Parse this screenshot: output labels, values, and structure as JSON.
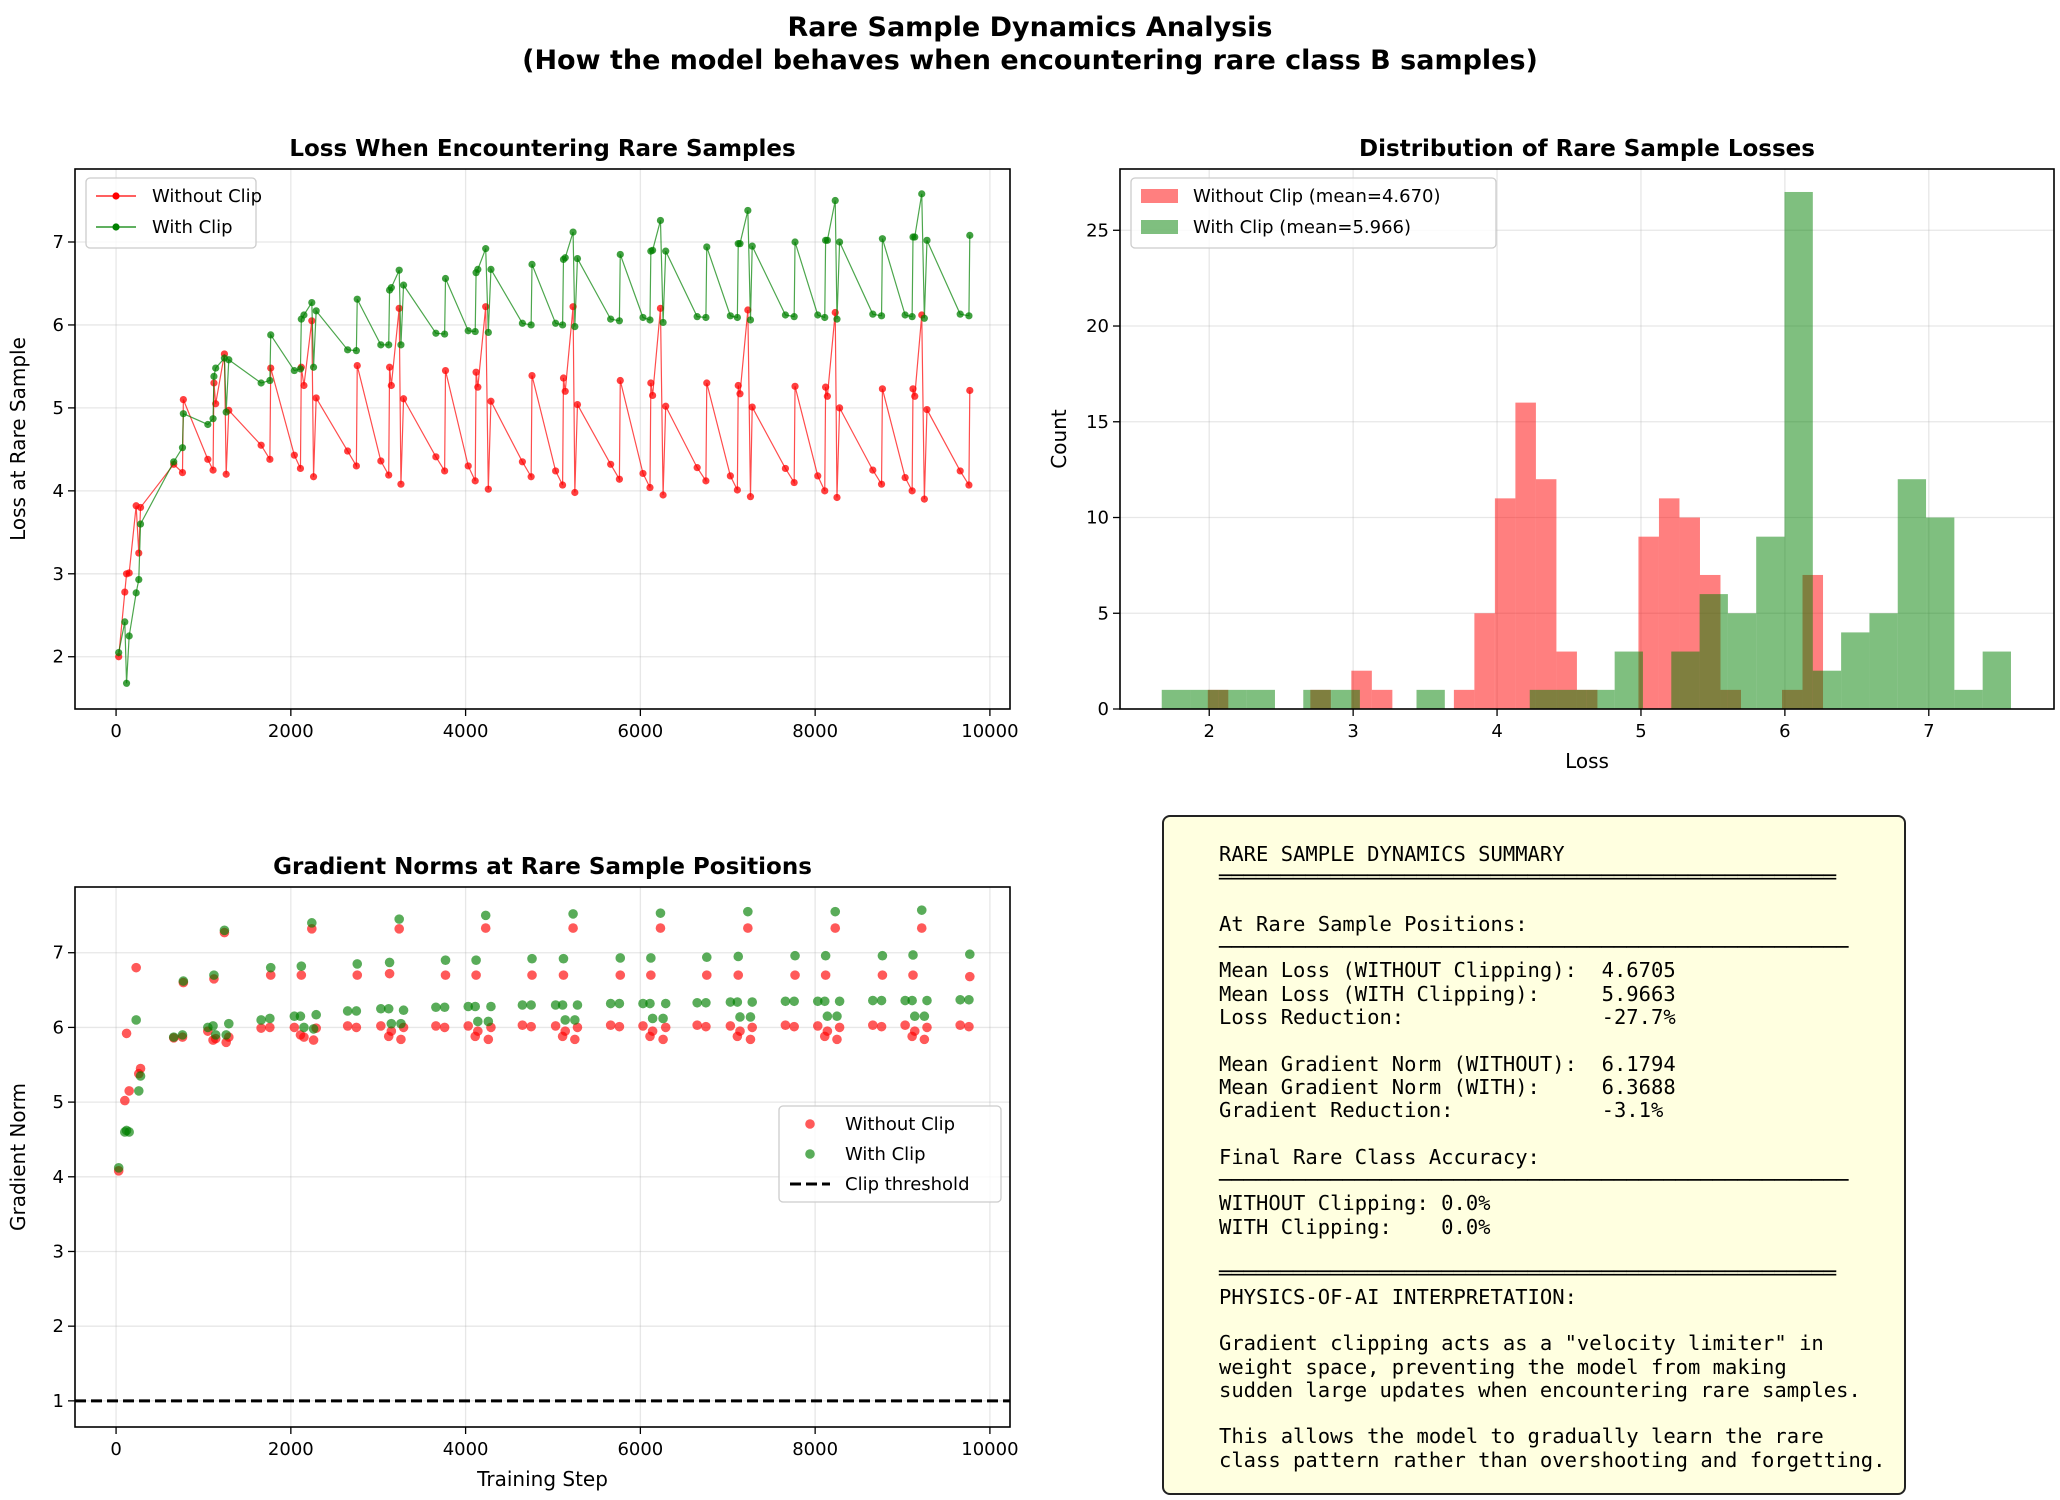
{
  "figure": {
    "title_line1": "Rare Sample Dynamics Analysis",
    "title_line2": "(How the model behaves when encountering rare class B samples)"
  },
  "colors": {
    "without_clip": "#ff0000",
    "with_clip": "#008000",
    "threshold": "#000000",
    "summary_bg": "#ffffe0"
  },
  "chart_data": [
    {
      "type": "line",
      "title": "Loss When Encountering Rare Samples",
      "xlabel": "",
      "ylabel": "Loss at Rare Sample",
      "xlim": [
        -470,
        10230
      ],
      "ylim": [
        1.37,
        7.88
      ],
      "xticks": [
        0,
        2000,
        4000,
        6000,
        8000,
        10000
      ],
      "yticks": [
        2,
        3,
        4,
        5,
        6,
        7
      ],
      "grid": true,
      "legend": "upper-left",
      "x": [
        30,
        100,
        120,
        150,
        230,
        260,
        280,
        660,
        760,
        770,
        1050,
        1110,
        1120,
        1140,
        1240,
        1260,
        1290,
        1660,
        1760,
        1770,
        2040,
        2110,
        2120,
        2150,
        2240,
        2260,
        2290,
        2650,
        2750,
        2760,
        3030,
        3120,
        3130,
        3150,
        3240,
        3260,
        3290,
        3660,
        3760,
        3770,
        4030,
        4110,
        4120,
        4140,
        4230,
        4260,
        4290,
        4650,
        4750,
        4760,
        5030,
        5110,
        5120,
        5140,
        5230,
        5250,
        5280,
        5660,
        5760,
        5770,
        6030,
        6110,
        6120,
        6140,
        6230,
        6260,
        6290,
        6650,
        6750,
        6760,
        7030,
        7110,
        7120,
        7140,
        7230,
        7260,
        7280,
        7660,
        7760,
        7770,
        8030,
        8110,
        8120,
        8140,
        8230,
        8250,
        8280,
        8660,
        8760,
        8770,
        9030,
        9110,
        9120,
        9140,
        9220,
        9250,
        9280,
        9660,
        9760,
        9770
      ],
      "series": [
        {
          "name": "Without Clip",
          "color": "#ff0000",
          "values": [
            2.0,
            2.78,
            3.0,
            3.01,
            3.82,
            3.25,
            3.8,
            4.32,
            4.22,
            5.1,
            4.38,
            4.25,
            5.3,
            5.05,
            5.65,
            4.2,
            4.97,
            4.55,
            4.38,
            5.48,
            4.43,
            4.27,
            5.49,
            5.27,
            6.05,
            4.17,
            5.12,
            4.48,
            4.3,
            5.51,
            4.36,
            4.19,
            5.49,
            5.27,
            6.2,
            4.08,
            5.11,
            4.41,
            4.24,
            5.45,
            4.3,
            4.12,
            5.43,
            5.25,
            6.22,
            4.02,
            5.08,
            4.35,
            4.17,
            5.39,
            4.24,
            4.07,
            5.36,
            5.2,
            6.22,
            3.98,
            5.04,
            4.32,
            4.14,
            5.33,
            4.21,
            4.04,
            5.3,
            5.15,
            6.2,
            3.95,
            5.02,
            4.28,
            4.12,
            5.3,
            4.18,
            4.01,
            5.27,
            5.17,
            6.18,
            3.93,
            5.01,
            4.27,
            4.1,
            5.26,
            4.18,
            4.0,
            5.25,
            5.14,
            6.15,
            3.92,
            5.0,
            4.25,
            4.08,
            5.23,
            4.16,
            4.0,
            5.23,
            5.14,
            6.12,
            3.9,
            4.98,
            4.24,
            4.07,
            5.21
          ]
        },
        {
          "name": "With Clip",
          "color": "#008000",
          "values": [
            2.05,
            2.42,
            1.68,
            2.25,
            2.77,
            2.93,
            3.6,
            4.35,
            4.52,
            4.93,
            4.8,
            4.87,
            5.38,
            5.48,
            5.6,
            4.95,
            5.58,
            5.3,
            5.33,
            5.88,
            5.45,
            5.47,
            6.07,
            6.12,
            6.27,
            5.49,
            6.17,
            5.7,
            5.69,
            6.31,
            5.76,
            5.76,
            6.42,
            6.45,
            6.66,
            5.76,
            6.48,
            5.9,
            5.89,
            6.56,
            5.93,
            5.92,
            6.63,
            6.67,
            6.92,
            5.91,
            6.67,
            6.02,
            6.0,
            6.73,
            6.02,
            6.0,
            6.79,
            6.81,
            7.12,
            5.98,
            6.8,
            6.07,
            6.05,
            6.85,
            6.09,
            6.06,
            6.89,
            6.9,
            7.26,
            6.03,
            6.89,
            6.1,
            6.09,
            6.94,
            6.11,
            6.09,
            6.98,
            6.98,
            7.38,
            6.06,
            6.95,
            6.12,
            6.1,
            7.0,
            6.12,
            6.09,
            7.02,
            7.02,
            7.5,
            6.07,
            7.0,
            6.13,
            6.11,
            7.04,
            6.12,
            6.1,
            7.06,
            7.06,
            7.58,
            6.08,
            7.02,
            6.13,
            6.11,
            7.08
          ]
        }
      ]
    },
    {
      "type": "bar",
      "subtype": "histogram",
      "title": "Distribution of Rare Sample Losses",
      "xlabel": "Loss",
      "ylabel": "Count",
      "xlim": [
        1.38,
        7.87
      ],
      "ylim": [
        0,
        28.2
      ],
      "xticks": [
        2,
        3,
        4,
        5,
        6,
        7
      ],
      "yticks": [
        0,
        5,
        10,
        15,
        20,
        25
      ],
      "grid": true,
      "legend": "upper-left",
      "series": [
        {
          "name": "Without Clip (mean=4.670)",
          "color": "#ff0000",
          "bin_start": 1.99,
          "bin_width": 0.1425,
          "counts": [
            1,
            0,
            0,
            0,
            0,
            1,
            0,
            2,
            1,
            0,
            0,
            0,
            1,
            5,
            11,
            16,
            12,
            3,
            1,
            0,
            0,
            9,
            11,
            10,
            7,
            1,
            0,
            0,
            1,
            7
          ]
        },
        {
          "name": "With Clip (mean=5.966)",
          "color": "#008000",
          "bin_start": 1.67,
          "bin_width": 0.1967,
          "counts": [
            1,
            1,
            1,
            1,
            0,
            1,
            1,
            0,
            0,
            1,
            0,
            0,
            0,
            1,
            1,
            1,
            3,
            0,
            3,
            6,
            5,
            9,
            27,
            2,
            4,
            5,
            12,
            10,
            1,
            3
          ]
        }
      ]
    },
    {
      "type": "scatter",
      "title": "Gradient Norms at Rare Sample Positions",
      "xlabel": "Training Step",
      "ylabel": "Gradient Norm",
      "xlim": [
        -470,
        10230
      ],
      "ylim": [
        0.65,
        7.88
      ],
      "xticks": [
        0,
        2000,
        4000,
        6000,
        8000,
        10000
      ],
      "yticks": [
        1,
        2,
        3,
        4,
        5,
        6,
        7
      ],
      "grid": true,
      "legend": "center-right",
      "threshold": {
        "name": "Clip threshold",
        "value": 1.0
      },
      "series": [
        {
          "name": "Without Clip",
          "color": "#ff0000",
          "values": [
            4.08,
            5.02,
            5.92,
            5.15,
            6.8,
            5.38,
            5.45,
            5.86,
            5.87,
            6.6,
            5.95,
            5.83,
            6.65,
            5.85,
            7.27,
            5.8,
            5.87,
            5.99,
            6.0,
            6.7,
            6.0,
            5.9,
            6.7,
            5.87,
            7.32,
            5.83,
            5.99,
            6.02,
            6.0,
            6.7,
            6.02,
            5.88,
            6.72,
            5.95,
            7.32,
            5.84,
            6.0,
            6.02,
            6.0,
            6.7,
            6.02,
            5.88,
            6.7,
            5.95,
            7.33,
            5.84,
            6.0,
            6.03,
            6.01,
            6.7,
            6.02,
            5.88,
            6.7,
            5.95,
            7.33,
            5.84,
            6.0,
            6.03,
            6.01,
            6.7,
            6.02,
            5.88,
            6.7,
            5.95,
            7.33,
            5.84,
            6.0,
            6.03,
            6.01,
            6.7,
            6.02,
            5.88,
            6.7,
            5.95,
            7.33,
            5.84,
            6.0,
            6.03,
            6.01,
            6.7,
            6.02,
            5.88,
            6.7,
            5.95,
            7.33,
            5.84,
            6.0,
            6.03,
            6.01,
            6.7,
            6.03,
            5.88,
            6.7,
            5.95,
            7.33,
            5.84,
            6.0,
            6.03,
            6.01,
            6.68
          ]
        },
        {
          "name": "With Clip",
          "color": "#008000",
          "values": [
            4.12,
            4.6,
            4.62,
            4.6,
            6.1,
            5.15,
            5.35,
            5.87,
            5.9,
            6.62,
            6.0,
            6.02,
            6.7,
            5.9,
            7.3,
            5.9,
            6.05,
            6.1,
            6.12,
            6.8,
            6.15,
            6.15,
            6.82,
            6.0,
            7.4,
            5.98,
            6.17,
            6.22,
            6.22,
            6.85,
            6.25,
            6.25,
            6.87,
            6.05,
            7.45,
            6.05,
            6.23,
            6.27,
            6.27,
            6.9,
            6.28,
            6.28,
            6.9,
            6.08,
            7.5,
            6.08,
            6.28,
            6.3,
            6.3,
            6.92,
            6.3,
            6.3,
            6.92,
            6.1,
            7.52,
            6.1,
            6.3,
            6.32,
            6.32,
            6.93,
            6.32,
            6.32,
            6.93,
            6.12,
            7.53,
            6.12,
            6.32,
            6.33,
            6.33,
            6.94,
            6.34,
            6.34,
            6.95,
            6.14,
            7.55,
            6.14,
            6.34,
            6.35,
            6.35,
            6.96,
            6.35,
            6.35,
            6.96,
            6.15,
            7.55,
            6.15,
            6.35,
            6.36,
            6.36,
            6.96,
            6.36,
            6.36,
            6.97,
            6.15,
            7.57,
            6.15,
            6.36,
            6.37,
            6.37,
            6.98
          ]
        }
      ]
    }
  ],
  "summary": {
    "lines": [
      "RARE SAMPLE DYNAMICS SUMMARY",
      "══════════════════════════════════════════════════",
      "",
      "At Rare Sample Positions:",
      "───────────────────────────────────────────────────",
      "Mean Loss (WITHOUT Clipping):  4.6705",
      "Mean Loss (WITH Clipping):     5.9663",
      "Loss Reduction:                -27.7%",
      "",
      "Mean Gradient Norm (WITHOUT):  6.1794",
      "Mean Gradient Norm (WITH):     6.3688",
      "Gradient Reduction:            -3.1%",
      "",
      "Final Rare Class Accuracy:",
      "───────────────────────────────────────────────────",
      "WITHOUT Clipping: 0.0%",
      "WITH Clipping:    0.0%",
      "",
      "══════════════════════════════════════════════════",
      "PHYSICS-OF-AI INTERPRETATION:",
      "",
      "Gradient clipping acts as a \"velocity limiter\" in",
      "weight space, preventing the model from making",
      "sudden large updates when encountering rare samples.",
      "",
      "This allows the model to gradually learn the rare",
      "class pattern rather than overshooting and forgetting."
    ]
  }
}
